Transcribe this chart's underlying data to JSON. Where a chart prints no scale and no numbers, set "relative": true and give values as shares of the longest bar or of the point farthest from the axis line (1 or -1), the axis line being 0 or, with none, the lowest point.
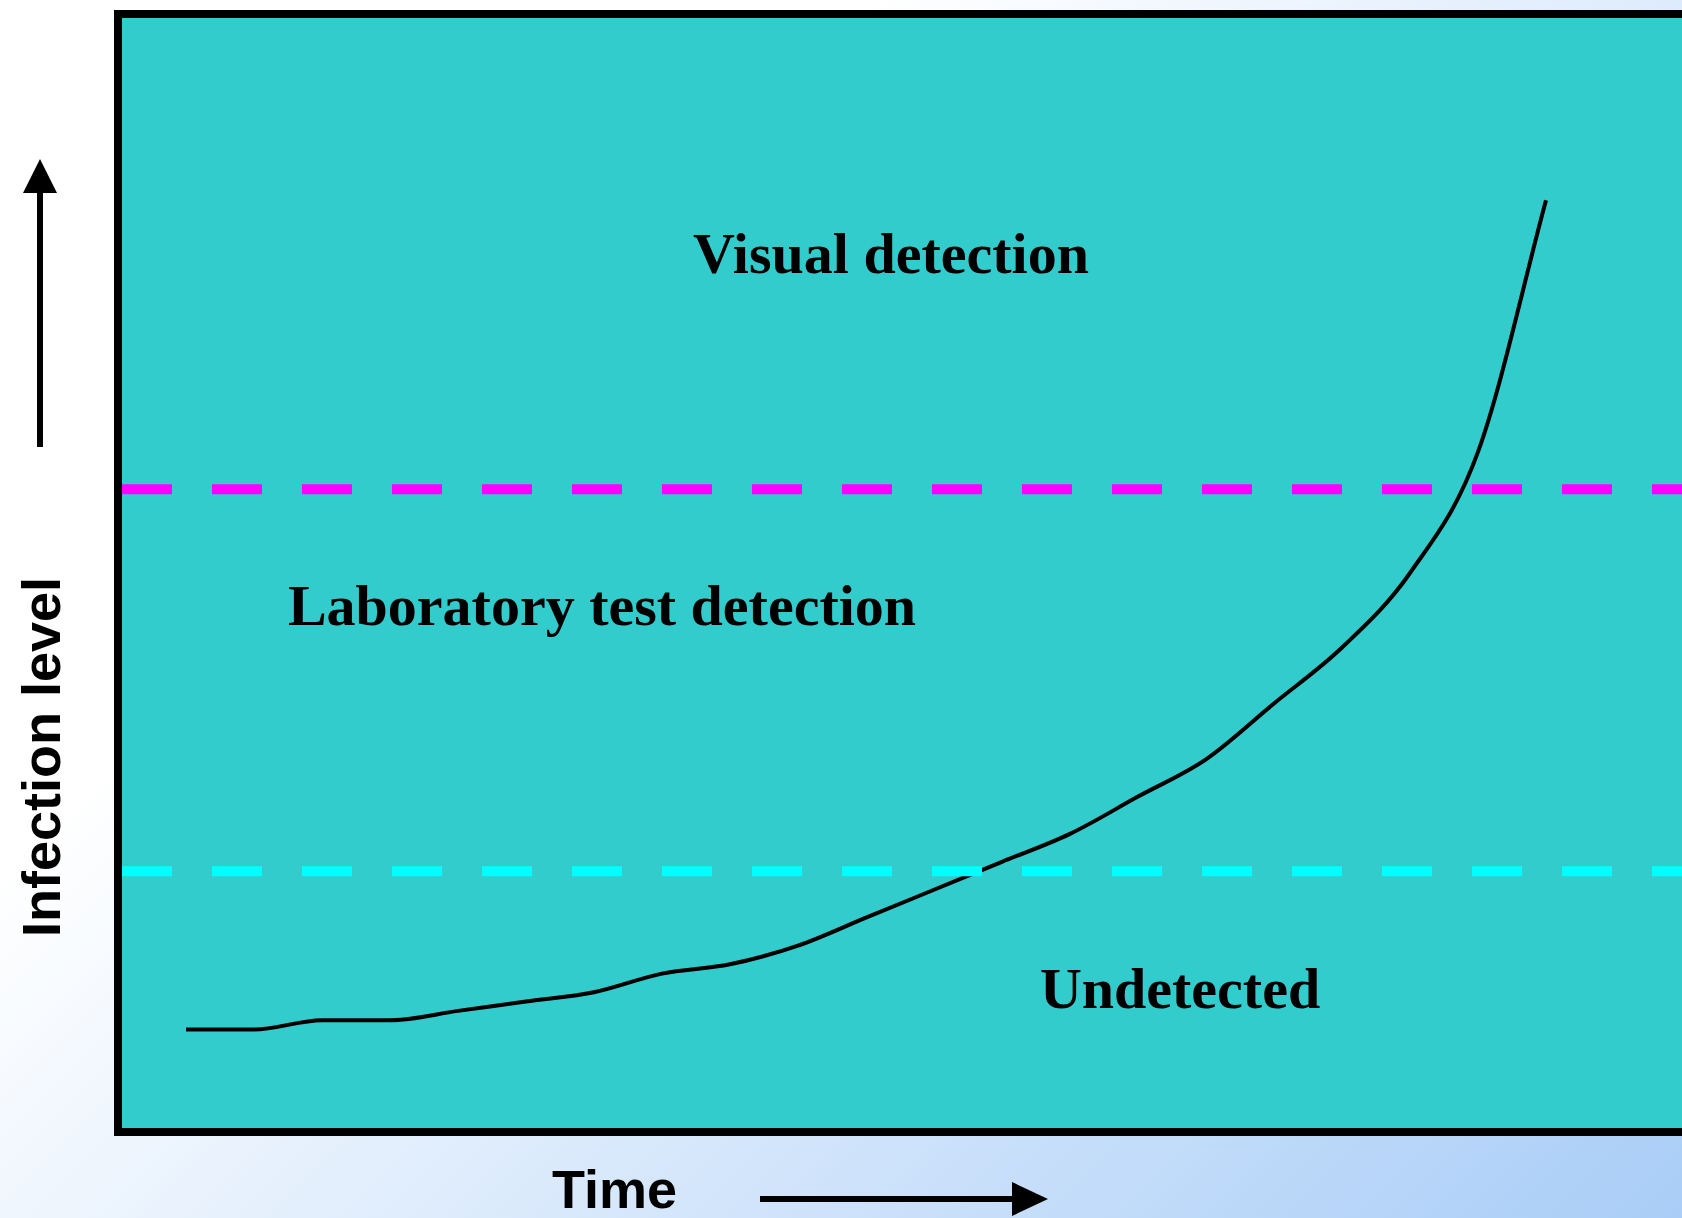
{
  "chart_data": {
    "type": "line",
    "relative": true,
    "xlabel": "Time",
    "ylabel": "Infection level",
    "categories": [
      null,
      null,
      null,
      null,
      null,
      null,
      null,
      null,
      null,
      null,
      null,
      null,
      null,
      null,
      null,
      null,
      null,
      null,
      null,
      null,
      null,
      null,
      null,
      null
    ],
    "series": [
      {
        "color": "#000000",
        "values": [
          null,
          0.11,
          0.11,
          0.12,
          0.12,
          0.13,
          0.14,
          0.15,
          0.17,
          0.18,
          0.2,
          0.23,
          0.26,
          0.29,
          0.32,
          0.36,
          0.4,
          0.46,
          0.52,
          0.6,
          0.73,
          1,
          null,
          null
        ]
      }
    ],
    "ref_lines": [
      {
        "axis": "y",
        "value": 0.69,
        "color": "#ff00ff",
        "line_style": "dashed"
      },
      {
        "axis": "y",
        "value": 0.28,
        "color": "#00ffff",
        "line_style": "dashed"
      }
    ],
    "annotations": [
      "Visual detection",
      "Laboratory test detection",
      "Undetected"
    ],
    "marker": "none",
    "line_style": "solid",
    "legend": false
  }
}
